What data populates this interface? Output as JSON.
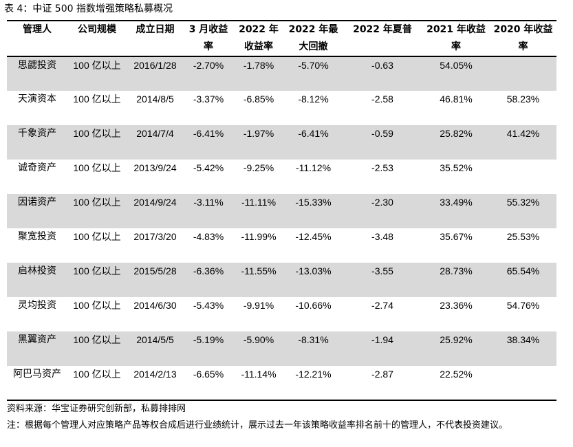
{
  "caption": "表 4：中证 500 指数增强策略私募概况",
  "headers": [
    "管理人",
    "公司规模",
    "成立日期",
    "3 月收益率",
    "2022 年收益率",
    "2022 年最大回撤",
    "2022 年夏普",
    "2021 年收益率",
    "2020 年收益率"
  ],
  "rows": [
    [
      "思勰投资",
      "100 亿以上",
      "2016/1/28",
      "-2.70%",
      "-1.78%",
      "-5.70%",
      "-0.63",
      "54.05%",
      ""
    ],
    [
      "天演资本",
      "100 亿以上",
      "2014/8/5",
      "-3.37%",
      "-6.85%",
      "-8.12%",
      "-2.58",
      "46.81%",
      "58.23%"
    ],
    [
      "千象资产",
      "100 亿以上",
      "2014/7/4",
      "-6.41%",
      "-1.97%",
      "-6.41%",
      "-0.59",
      "25.82%",
      "41.42%"
    ],
    [
      "诚奇资产",
      "100 亿以上",
      "2013/9/24",
      "-5.42%",
      "-9.25%",
      "-11.12%",
      "-2.53",
      "35.52%",
      ""
    ],
    [
      "因诺资产",
      "100 亿以上",
      "2014/9/24",
      "-3.11%",
      "-11.11%",
      "-15.33%",
      "-2.30",
      "33.49%",
      "55.32%"
    ],
    [
      "聚宽投资",
      "100 亿以上",
      "2017/3/20",
      "-4.83%",
      "-11.99%",
      "-12.45%",
      "-3.48",
      "35.67%",
      "25.53%"
    ],
    [
      "启林投资",
      "100 亿以上",
      "2015/5/28",
      "-6.36%",
      "-11.55%",
      "-13.03%",
      "-3.55",
      "28.73%",
      "65.54%"
    ],
    [
      "灵均投资",
      "100 亿以上",
      "2014/6/30",
      "-5.43%",
      "-9.91%",
      "-10.66%",
      "-2.74",
      "23.36%",
      "54.76%"
    ],
    [
      "黑翼资产",
      "100 亿以上",
      "2014/5/5",
      "-5.19%",
      "-5.90%",
      "-8.31%",
      "-1.94",
      "25.92%",
      "38.34%"
    ],
    [
      "阿巴马资产",
      "100 亿以上",
      "2014/2/13",
      "-6.65%",
      "-11.14%",
      "-12.21%",
      "-2.87",
      "22.52%",
      ""
    ]
  ],
  "source": "资料来源：华宝证券研究创新部，私募排排网",
  "note": "注：根据每个管理人对应策略产品等权合成后进行业绩统计，展示过去一年该策略收益率排名前十的管理人，不代表投资建议。"
}
